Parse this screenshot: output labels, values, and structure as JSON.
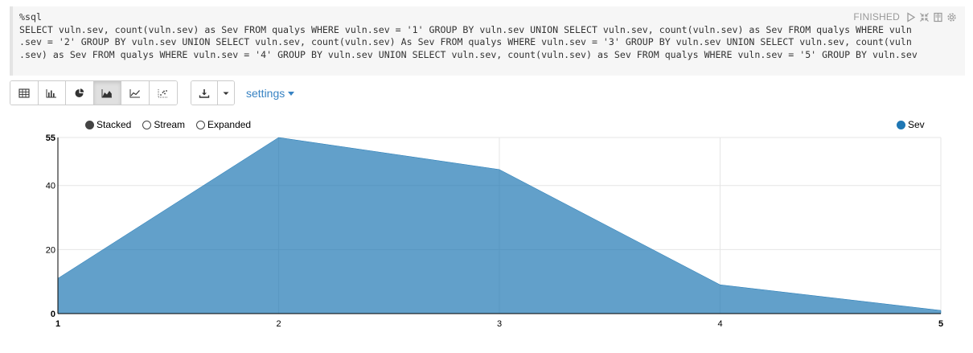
{
  "paragraph": {
    "interpreter": "%sql",
    "code_lines": [
      "SELECT vuln.sev, count(vuln.sev) as Sev FROM qualys WHERE vuln.sev = '1' GROUP BY vuln.sev UNION SELECT vuln.sev, count(vuln.sev) as Sev FROM qualys WHERE vuln",
      ".sev = '2' GROUP BY vuln.sev UNION SELECT vuln.sev, count(vuln.sev) As Sev FROM qualys WHERE vuln.sev = '3' GROUP BY vuln.sev UNION SELECT vuln.sev, count(vuln",
      ".sev) as Sev FROM qualys WHERE vuln.sev = '4' GROUP BY vuln.sev UNION SELECT vuln.sev, count(vuln.sev) as Sev FROM qualys WHERE vuln.sev = '5' GROUP BY vuln.sev"
    ],
    "status": "FINISHED",
    "status_icons": [
      "run-icon",
      "collapse-icon",
      "book-icon",
      "gear-icon"
    ]
  },
  "toolbar": {
    "view_buttons": [
      {
        "name": "table-icon",
        "active": false
      },
      {
        "name": "bar-chart-icon",
        "active": false
      },
      {
        "name": "pie-chart-icon",
        "active": false
      },
      {
        "name": "area-chart-icon",
        "active": true
      },
      {
        "name": "line-chart-icon",
        "active": false
      },
      {
        "name": "scatter-chart-icon",
        "active": false
      }
    ],
    "download_icon": "download-icon",
    "settings_label": "settings"
  },
  "chart_options": {
    "modes": [
      {
        "label": "Stacked",
        "selected": true
      },
      {
        "label": "Stream",
        "selected": false
      },
      {
        "label": "Expanded",
        "selected": false
      }
    ],
    "legend": [
      {
        "label": "Sev",
        "color": "#1f77b4"
      }
    ]
  },
  "chart_data": {
    "type": "area",
    "x": [
      1,
      2,
      3,
      4,
      5
    ],
    "series": [
      {
        "name": "Sev",
        "values": [
          11,
          55,
          45,
          9,
          1
        ]
      }
    ],
    "xlim": [
      1,
      5
    ],
    "ylim": [
      0,
      55
    ],
    "y_ticks": [
      0,
      20,
      40,
      55
    ],
    "x_ticks": [
      1,
      2,
      3,
      4,
      5
    ],
    "fill_color": "#1f77b4",
    "grid": true,
    "legend_position": "top-right"
  }
}
